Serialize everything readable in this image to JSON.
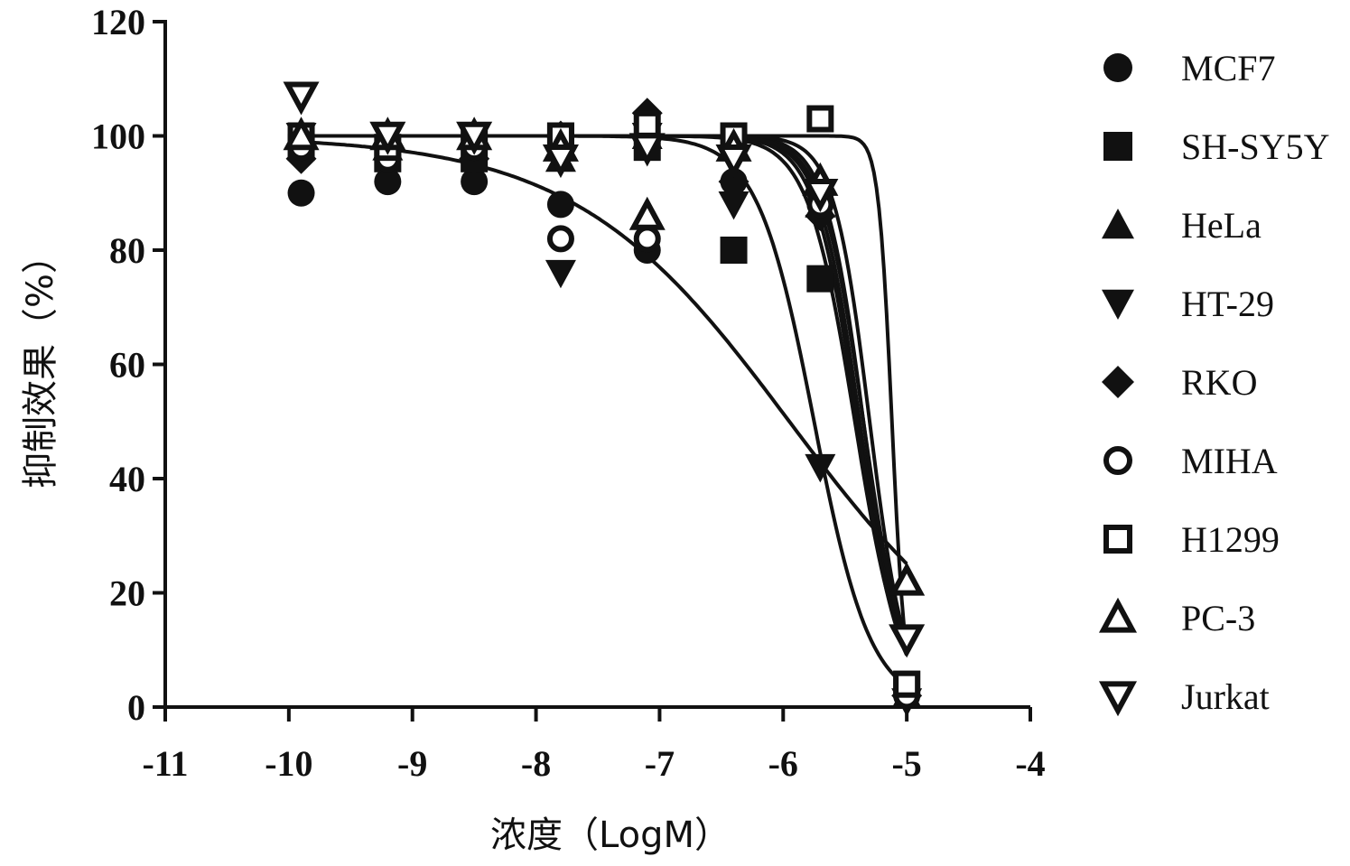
{
  "chart_data": {
    "type": "line",
    "title": "",
    "xlabel": "浓度（LogM）",
    "ylabel": "抑制效果（%）",
    "xlim": [
      -11,
      -4
    ],
    "ylim": [
      0,
      120
    ],
    "xticks": [
      "-11",
      "-10",
      "-9",
      "-8",
      "-7",
      "-6",
      "-5",
      "-4"
    ],
    "yticks": [
      "0",
      "20",
      "40",
      "60",
      "80",
      "100",
      "120"
    ],
    "grid": false,
    "legend_position": "right",
    "x": [
      -9.9,
      -9.2,
      -8.5,
      -7.8,
      -7.1,
      -6.4,
      -5.7,
      -5.0
    ],
    "series": [
      {
        "name": "MCF7",
        "marker": "circle-filled",
        "y": [
          90,
          92,
          92,
          88,
          80,
          92,
          90,
          3
        ],
        "curve": {
          "top": 100,
          "bottom": 0,
          "logIC50": -5.38,
          "hill": 2.6
        }
      },
      {
        "name": "SH-SY5Y",
        "marker": "square-filled",
        "y": [
          98,
          96,
          96,
          100,
          98,
          80,
          75,
          4
        ],
        "curve": {
          "top": 100,
          "bottom": 0,
          "logIC50": -5.42,
          "hill": 2.3
        }
      },
      {
        "name": "HeLa",
        "marker": "triangle-up-filled",
        "y": [
          100,
          98,
          100,
          96,
          100,
          98,
          88,
          2
        ],
        "curve": {
          "top": 100,
          "bottom": 0,
          "logIC50": -5.35,
          "hill": 2.8
        }
      },
      {
        "name": "HT-29",
        "marker": "triangle-down-filled",
        "y": [
          100,
          98,
          98,
          76,
          100,
          88,
          42,
          1
        ],
        "curve": {
          "top": 100,
          "bottom": 0,
          "logIC50": -5.75,
          "hill": 1.9
        }
      },
      {
        "name": "RKO",
        "marker": "diamond-filled",
        "y": [
          96,
          98,
          96,
          100,
          104,
          92,
          86,
          2
        ],
        "curve": {
          "top": 100,
          "bottom": 0,
          "logIC50": -5.4,
          "hill": 2.5
        }
      },
      {
        "name": "MIHA",
        "marker": "circle-open",
        "y": [
          98,
          96,
          98,
          82,
          82,
          98,
          88,
          2
        ],
        "curve": {
          "top": 100,
          "bottom": 0,
          "logIC50": -5.95,
          "hill": 0.5
        }
      },
      {
        "name": "H1299",
        "marker": "square-open",
        "y": [
          100,
          98,
          100,
          100,
          102,
          100,
          103,
          4
        ],
        "curve": {
          "top": 100,
          "bottom": 0,
          "logIC50": -5.12,
          "hill": 8
        }
      },
      {
        "name": "PC-3",
        "marker": "triangle-up-open",
        "y": [
          100,
          100,
          100,
          98,
          86,
          98,
          92,
          22
        ],
        "curve": {
          "top": 100,
          "bottom": 0,
          "logIC50": -5.3,
          "hill": 3
        }
      },
      {
        "name": "Jurkat",
        "marker": "triangle-down-open",
        "y": [
          107,
          100,
          100,
          96,
          98,
          96,
          90,
          12
        ],
        "curve": {
          "top": 100,
          "bottom": 0,
          "logIC50": -5.35,
          "hill": 2.6
        }
      }
    ]
  }
}
